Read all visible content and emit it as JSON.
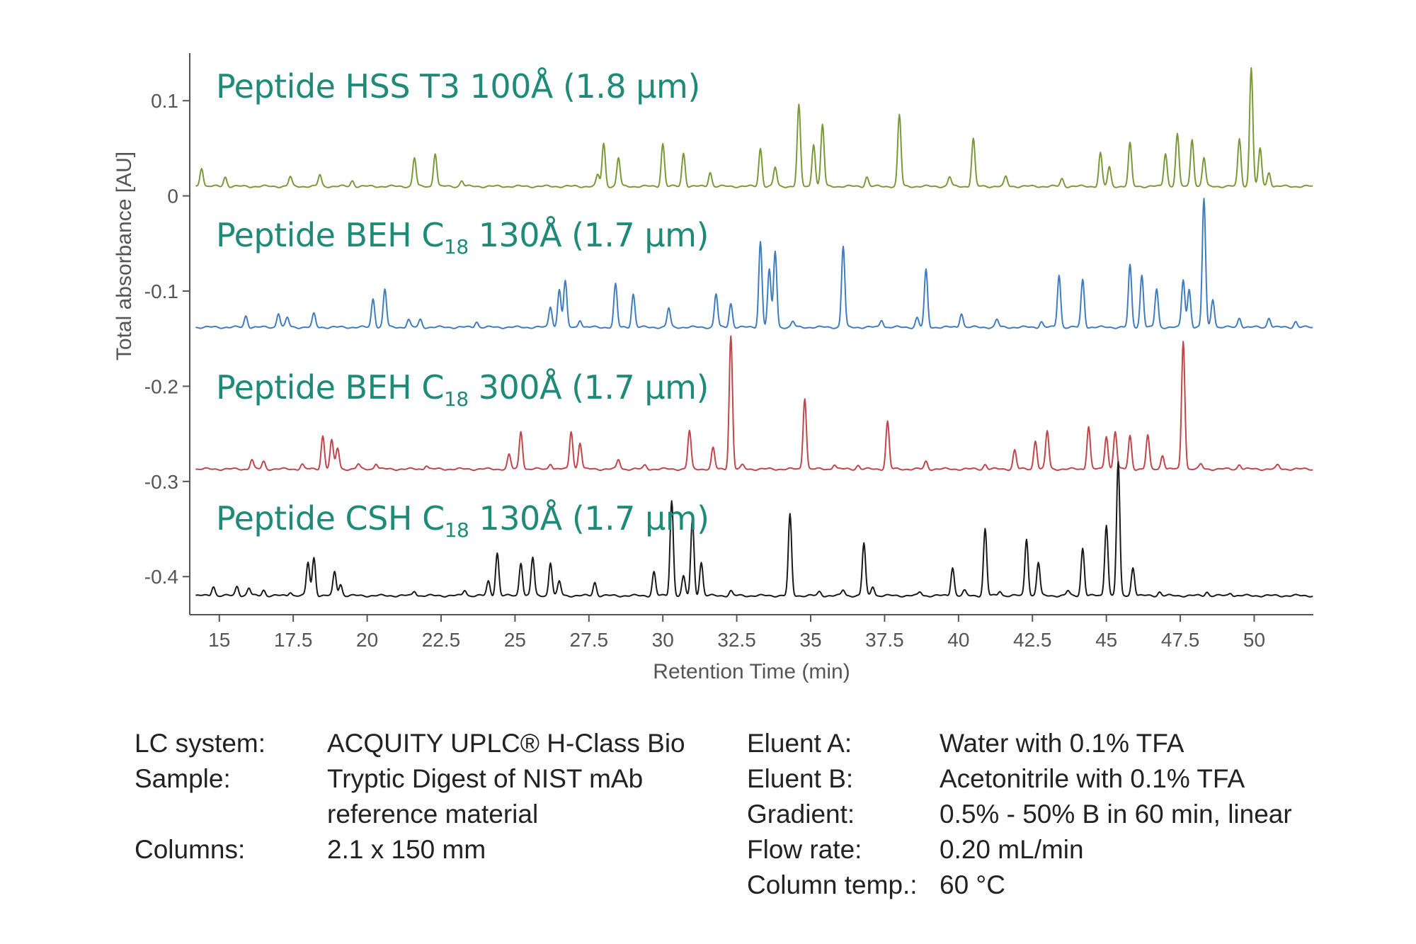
{
  "chart_data": {
    "type": "line",
    "xlabel": "Retention Time (min)",
    "ylabel": "Total absorbance [AU]",
    "xlim": [
      14,
      52
    ],
    "ylim": [
      -0.44,
      0.15
    ],
    "x_ticks": [
      "15",
      "17.5",
      "20",
      "22.5",
      "25",
      "27.5",
      "30",
      "32.5",
      "35",
      "37.5",
      "40",
      "42.5",
      "45",
      "47.5",
      "50"
    ],
    "y_ticks": [
      "0.1",
      "0",
      "-0.1",
      "-0.2",
      "-0.3",
      "-0.4"
    ],
    "series": [
      {
        "name_prefix": "Peptide HSS T3 100Å (1.8 µm)",
        "name_sub": "",
        "name_suffix": "",
        "color": "#7a9a3a",
        "baseline": 0.01,
        "peaks": [
          [
            14.4,
            0.02
          ],
          [
            15.2,
            0.01
          ],
          [
            17.4,
            0.01
          ],
          [
            18.4,
            0.012
          ],
          [
            19.5,
            0.006
          ],
          [
            21.6,
            0.03
          ],
          [
            22.3,
            0.035
          ],
          [
            23.2,
            0.006
          ],
          [
            27.8,
            0.012
          ],
          [
            28.0,
            0.045
          ],
          [
            28.5,
            0.03
          ],
          [
            30.0,
            0.045
          ],
          [
            30.7,
            0.035
          ],
          [
            31.6,
            0.015
          ],
          [
            33.3,
            0.04
          ],
          [
            33.8,
            0.02
          ],
          [
            34.6,
            0.085
          ],
          [
            35.1,
            0.045
          ],
          [
            35.4,
            0.065
          ],
          [
            36.9,
            0.01
          ],
          [
            38.0,
            0.075
          ],
          [
            39.7,
            0.01
          ],
          [
            40.5,
            0.05
          ],
          [
            41.6,
            0.01
          ],
          [
            43.5,
            0.008
          ],
          [
            44.8,
            0.035
          ],
          [
            45.1,
            0.02
          ],
          [
            45.8,
            0.045
          ],
          [
            47.0,
            0.035
          ],
          [
            47.4,
            0.055
          ],
          [
            47.9,
            0.05
          ],
          [
            48.3,
            0.03
          ],
          [
            49.5,
            0.05
          ],
          [
            49.9,
            0.125
          ],
          [
            50.2,
            0.04
          ],
          [
            50.5,
            0.015
          ]
        ]
      },
      {
        "name_prefix": "Peptide BEH C",
        "name_sub": "18",
        "name_suffix": " 130Å  (1.7 µm)",
        "color": "#3f7cc0",
        "baseline": -0.138,
        "peaks": [
          [
            15.9,
            0.012
          ],
          [
            17.0,
            0.015
          ],
          [
            17.3,
            0.01
          ],
          [
            18.2,
            0.014
          ],
          [
            20.2,
            0.03
          ],
          [
            20.6,
            0.04
          ],
          [
            21.4,
            0.008
          ],
          [
            21.8,
            0.008
          ],
          [
            23.7,
            0.006
          ],
          [
            26.2,
            0.022
          ],
          [
            26.5,
            0.04
          ],
          [
            26.7,
            0.048
          ],
          [
            27.2,
            0.008
          ],
          [
            28.4,
            0.045
          ],
          [
            29.0,
            0.035
          ],
          [
            30.2,
            0.02
          ],
          [
            31.8,
            0.035
          ],
          [
            32.3,
            0.025
          ],
          [
            33.3,
            0.09
          ],
          [
            33.6,
            0.06
          ],
          [
            33.8,
            0.08
          ],
          [
            34.4,
            0.006
          ],
          [
            36.1,
            0.085
          ],
          [
            37.4,
            0.008
          ],
          [
            38.6,
            0.01
          ],
          [
            38.9,
            0.06
          ],
          [
            40.1,
            0.015
          ],
          [
            41.3,
            0.008
          ],
          [
            42.8,
            0.006
          ],
          [
            43.4,
            0.055
          ],
          [
            44.2,
            0.05
          ],
          [
            45.8,
            0.065
          ],
          [
            46.2,
            0.055
          ],
          [
            46.7,
            0.04
          ],
          [
            47.6,
            0.05
          ],
          [
            47.8,
            0.04
          ],
          [
            48.3,
            0.135
          ],
          [
            48.6,
            0.03
          ],
          [
            49.5,
            0.01
          ],
          [
            50.5,
            0.01
          ],
          [
            51.4,
            0.006
          ]
        ]
      },
      {
        "name_prefix": "Peptide BEH C",
        "name_sub": "18",
        "name_suffix": " 300Å  (1.7 µm)",
        "color": "#c0464b",
        "baseline": -0.287,
        "peaks": [
          [
            16.1,
            0.01
          ],
          [
            16.5,
            0.008
          ],
          [
            17.8,
            0.005
          ],
          [
            18.5,
            0.035
          ],
          [
            18.8,
            0.03
          ],
          [
            19.0,
            0.022
          ],
          [
            19.7,
            0.005
          ],
          [
            20.3,
            0.006
          ],
          [
            22.0,
            0.004
          ],
          [
            24.8,
            0.015
          ],
          [
            25.2,
            0.04
          ],
          [
            26.2,
            0.006
          ],
          [
            26.9,
            0.04
          ],
          [
            27.2,
            0.028
          ],
          [
            28.5,
            0.01
          ],
          [
            29.4,
            0.004
          ],
          [
            30.9,
            0.04
          ],
          [
            31.7,
            0.022
          ],
          [
            32.3,
            0.14
          ],
          [
            32.7,
            0.004
          ],
          [
            34.8,
            0.075
          ],
          [
            35.8,
            0.005
          ],
          [
            36.6,
            0.004
          ],
          [
            37.6,
            0.05
          ],
          [
            38.9,
            0.008
          ],
          [
            40.9,
            0.005
          ],
          [
            41.9,
            0.02
          ],
          [
            42.6,
            0.03
          ],
          [
            43.0,
            0.04
          ],
          [
            44.4,
            0.045
          ],
          [
            45.0,
            0.035
          ],
          [
            45.3,
            0.04
          ],
          [
            45.8,
            0.035
          ],
          [
            46.4,
            0.035
          ],
          [
            46.9,
            0.015
          ],
          [
            47.6,
            0.135
          ],
          [
            48.2,
            0.005
          ],
          [
            49.5,
            0.005
          ],
          [
            50.8,
            0.004
          ]
        ]
      },
      {
        "name_prefix": "Peptide CSH C",
        "name_sub": "18",
        "name_suffix": " 130Å (1.7 µm)",
        "color": "#1a1a1a",
        "baseline": -0.42,
        "peaks": [
          [
            14.8,
            0.01
          ],
          [
            15.6,
            0.01
          ],
          [
            16.0,
            0.008
          ],
          [
            16.5,
            0.006
          ],
          [
            17.4,
            0.004
          ],
          [
            18.0,
            0.035
          ],
          [
            18.2,
            0.04
          ],
          [
            18.9,
            0.025
          ],
          [
            19.1,
            0.012
          ],
          [
            21.6,
            0.005
          ],
          [
            23.3,
            0.006
          ],
          [
            24.1,
            0.015
          ],
          [
            24.4,
            0.045
          ],
          [
            25.2,
            0.035
          ],
          [
            25.6,
            0.04
          ],
          [
            26.2,
            0.035
          ],
          [
            26.5,
            0.015
          ],
          [
            27.7,
            0.014
          ],
          [
            29.7,
            0.025
          ],
          [
            30.3,
            0.1
          ],
          [
            30.7,
            0.02
          ],
          [
            31.0,
            0.08
          ],
          [
            31.3,
            0.035
          ],
          [
            32.3,
            0.005
          ],
          [
            34.3,
            0.085
          ],
          [
            35.3,
            0.004
          ],
          [
            36.1,
            0.006
          ],
          [
            36.8,
            0.055
          ],
          [
            37.1,
            0.01
          ],
          [
            38.7,
            0.004
          ],
          [
            39.8,
            0.03
          ],
          [
            40.2,
            0.005
          ],
          [
            40.9,
            0.07
          ],
          [
            41.4,
            0.005
          ],
          [
            42.3,
            0.06
          ],
          [
            42.7,
            0.035
          ],
          [
            43.7,
            0.005
          ],
          [
            44.2,
            0.05
          ],
          [
            45.0,
            0.075
          ],
          [
            45.4,
            0.14
          ],
          [
            45.9,
            0.03
          ],
          [
            46.8,
            0.004
          ],
          [
            48.4,
            0.004
          ],
          [
            49.2,
            0.003
          ]
        ]
      }
    ]
  },
  "params": {
    "left": [
      {
        "key": "LC system:",
        "values": [
          "ACQUITY UPLC® H-Class Bio"
        ]
      },
      {
        "key": "Sample:",
        "values": [
          "Tryptic Digest of NIST mAb",
          "reference material"
        ]
      },
      {
        "key": "Columns:",
        "values": [
          "2.1 x 150 mm"
        ]
      }
    ],
    "right": [
      {
        "key": "Eluent A:",
        "values": [
          "Water with 0.1% TFA"
        ]
      },
      {
        "key": "Eluent B:",
        "values": [
          "Acetonitrile with 0.1% TFA"
        ]
      },
      {
        "key": "Gradient:",
        "values": [
          "0.5% - 50% B in 60 min, linear"
        ]
      },
      {
        "key": "Flow rate:",
        "values": [
          "0.20 mL/min"
        ]
      },
      {
        "key": "Column temp.:",
        "values": [
          "60 °C"
        ]
      }
    ]
  }
}
